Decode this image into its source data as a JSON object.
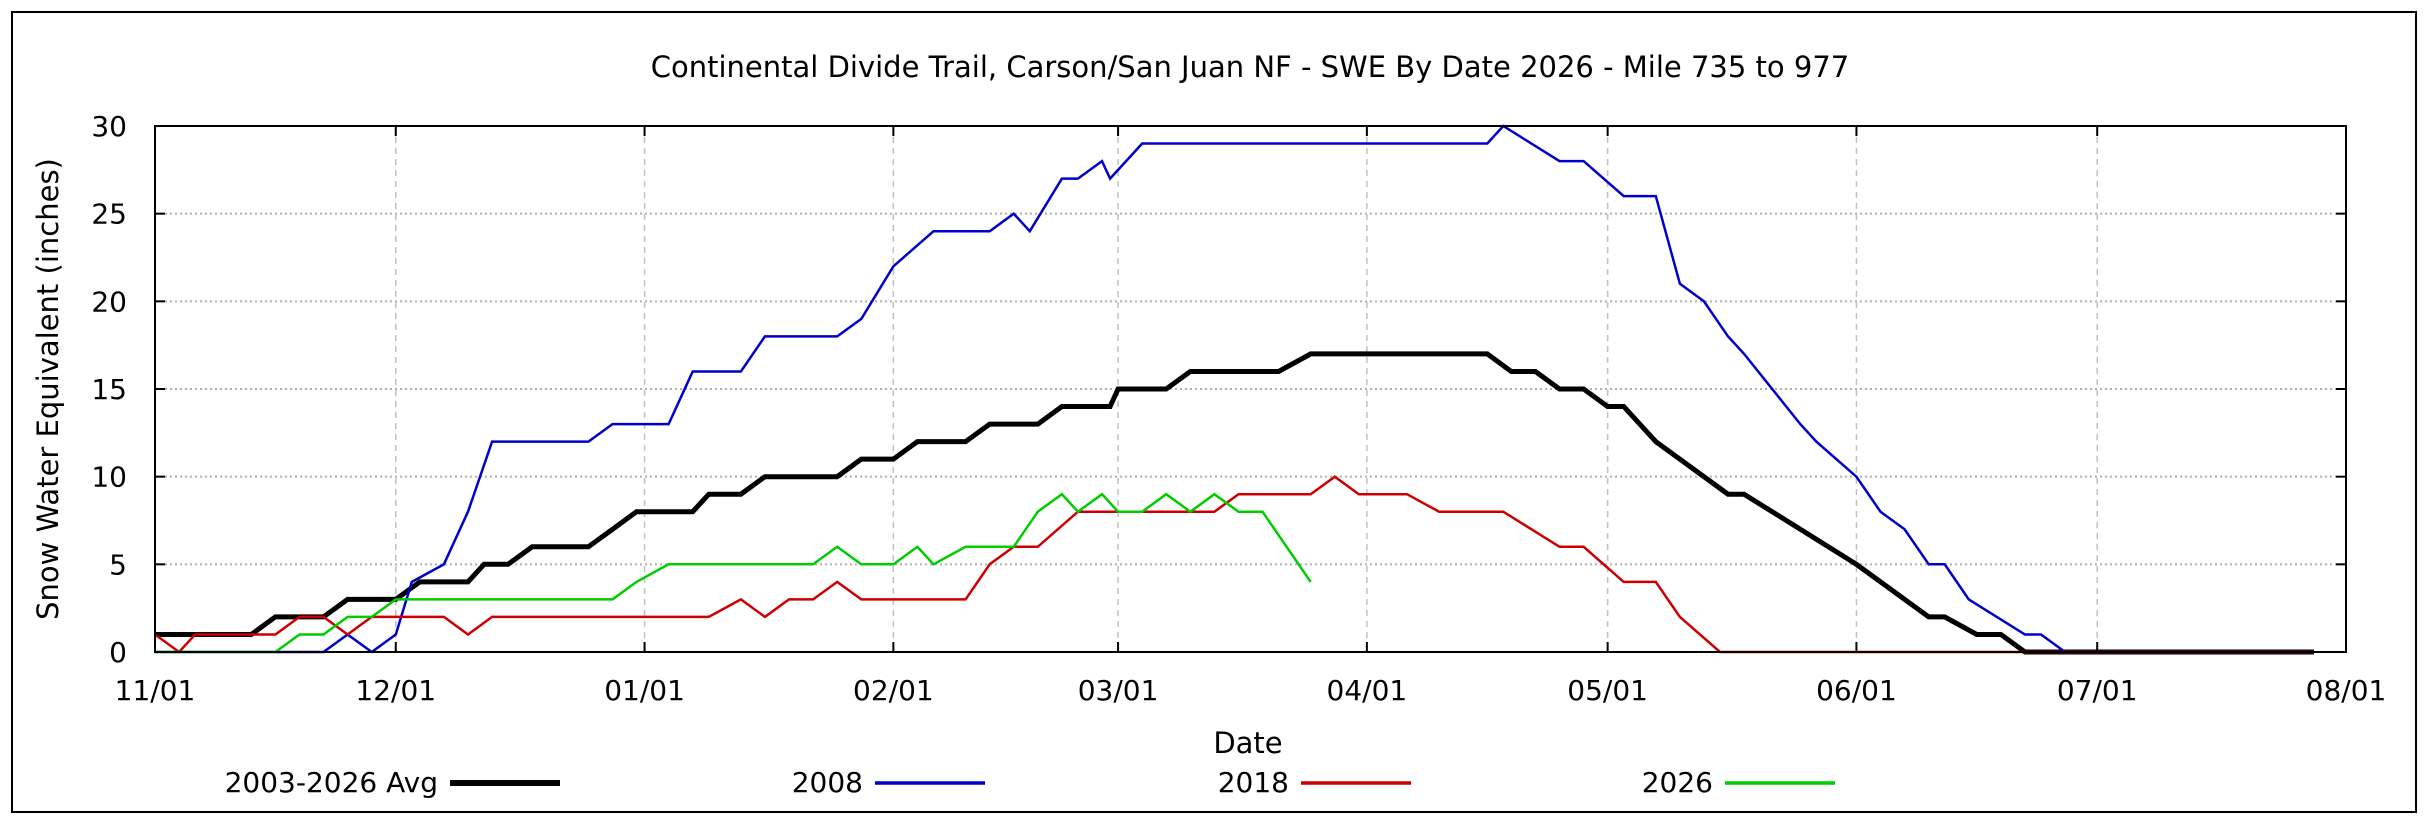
{
  "chart_data": {
    "type": "line",
    "title": "Continental Divide Trail, Carson/San Juan NF - SWE By Date 2026 - Mile 735 to 977",
    "xlabel": "Date",
    "ylabel": "Snow Water Equivalent (inches)",
    "x_unit": "days since 11/01",
    "xlim": [
      0,
      273
    ],
    "ylim": [
      0,
      30
    ],
    "yticks": [
      0,
      5,
      10,
      15,
      20,
      25,
      30
    ],
    "xticks": [
      {
        "label": "11/01",
        "day": 0
      },
      {
        "label": "12/01",
        "day": 30
      },
      {
        "label": "01/01",
        "day": 61
      },
      {
        "label": "02/01",
        "day": 92
      },
      {
        "label": "03/01",
        "day": 120
      },
      {
        "label": "04/01",
        "day": 151
      },
      {
        "label": "05/01",
        "day": 181
      },
      {
        "label": "06/01",
        "day": 212
      },
      {
        "label": "07/01",
        "day": 242
      },
      {
        "label": "08/01",
        "day": 273
      }
    ],
    "grid": true,
    "legend_position": "bottom",
    "series": [
      {
        "name": "2003-2026 Avg",
        "color": "#000000",
        "width": 5,
        "points": [
          [
            0,
            1
          ],
          [
            12,
            1
          ],
          [
            15,
            2
          ],
          [
            21,
            2
          ],
          [
            24,
            3
          ],
          [
            30,
            3
          ],
          [
            33,
            4
          ],
          [
            39,
            4
          ],
          [
            41,
            5
          ],
          [
            44,
            5
          ],
          [
            47,
            6
          ],
          [
            54,
            6
          ],
          [
            57,
            7
          ],
          [
            60,
            8
          ],
          [
            67,
            8
          ],
          [
            69,
            9
          ],
          [
            73,
            9
          ],
          [
            76,
            10
          ],
          [
            85,
            10
          ],
          [
            88,
            11
          ],
          [
            92,
            11
          ],
          [
            95,
            12
          ],
          [
            101,
            12
          ],
          [
            104,
            13
          ],
          [
            110,
            13
          ],
          [
            113,
            14
          ],
          [
            119,
            14
          ],
          [
            120,
            15
          ],
          [
            126,
            15
          ],
          [
            129,
            16
          ],
          [
            140,
            16
          ],
          [
            144,
            17
          ],
          [
            166,
            17
          ],
          [
            169,
            16
          ],
          [
            172,
            16
          ],
          [
            175,
            15
          ],
          [
            178,
            15
          ],
          [
            181,
            14
          ],
          [
            183,
            14
          ],
          [
            187,
            12
          ],
          [
            196,
            9
          ],
          [
            198,
            9
          ],
          [
            212,
            5
          ],
          [
            221,
            2
          ],
          [
            223,
            2
          ],
          [
            227,
            1
          ],
          [
            230,
            1
          ],
          [
            233,
            0
          ],
          [
            269,
            0
          ]
        ]
      },
      {
        "name": "2008",
        "color": "#0000cc",
        "width": 2.5,
        "points": [
          [
            0,
            0
          ],
          [
            21,
            0
          ],
          [
            24,
            1
          ],
          [
            27,
            0
          ],
          [
            30,
            1
          ],
          [
            32,
            4
          ],
          [
            36,
            5
          ],
          [
            39,
            8
          ],
          [
            42,
            12
          ],
          [
            54,
            12
          ],
          [
            57,
            13
          ],
          [
            64,
            13
          ],
          [
            67,
            16
          ],
          [
            73,
            16
          ],
          [
            76,
            18
          ],
          [
            85,
            18
          ],
          [
            88,
            19
          ],
          [
            92,
            22
          ],
          [
            97,
            24
          ],
          [
            104,
            24
          ],
          [
            107,
            25
          ],
          [
            109,
            24
          ],
          [
            113,
            27
          ],
          [
            115,
            27
          ],
          [
            118,
            28
          ],
          [
            119,
            27
          ],
          [
            123,
            29
          ],
          [
            166,
            29
          ],
          [
            168,
            30
          ],
          [
            175,
            28
          ],
          [
            178,
            28
          ],
          [
            183,
            26
          ],
          [
            187,
            26
          ],
          [
            190,
            21
          ],
          [
            193,
            20
          ],
          [
            196,
            18
          ],
          [
            198,
            17
          ],
          [
            205,
            13
          ],
          [
            207,
            12
          ],
          [
            212,
            10
          ],
          [
            215,
            8
          ],
          [
            218,
            7
          ],
          [
            221,
            5
          ],
          [
            223,
            5
          ],
          [
            226,
            3
          ],
          [
            233,
            1
          ],
          [
            235,
            1
          ],
          [
            238,
            0
          ],
          [
            269,
            0
          ]
        ]
      },
      {
        "name": "2018",
        "color": "#cc0000",
        "width": 2.5,
        "points": [
          [
            0,
            1
          ],
          [
            3,
            0
          ],
          [
            5,
            1
          ],
          [
            12,
            1
          ],
          [
            15,
            1
          ],
          [
            18,
            2
          ],
          [
            21,
            2
          ],
          [
            24,
            1
          ],
          [
            27,
            2
          ],
          [
            36,
            2
          ],
          [
            39,
            1
          ],
          [
            42,
            2
          ],
          [
            69,
            2
          ],
          [
            73,
            3
          ],
          [
            76,
            2
          ],
          [
            79,
            3
          ],
          [
            82,
            3
          ],
          [
            85,
            4
          ],
          [
            88,
            3
          ],
          [
            101,
            3
          ],
          [
            104,
            5
          ],
          [
            107,
            6
          ],
          [
            110,
            6
          ],
          [
            115,
            8
          ],
          [
            132,
            8
          ],
          [
            135,
            9
          ],
          [
            144,
            9
          ],
          [
            147,
            10
          ],
          [
            150,
            9
          ],
          [
            156,
            9
          ],
          [
            160,
            8
          ],
          [
            168,
            8
          ],
          [
            175,
            6
          ],
          [
            178,
            6
          ],
          [
            183,
            4
          ],
          [
            187,
            4
          ],
          [
            190,
            2
          ],
          [
            195,
            0
          ],
          [
            269,
            0
          ]
        ]
      },
      {
        "name": "2026",
        "color": "#00cc00",
        "width": 2.5,
        "points": [
          [
            0,
            0
          ],
          [
            15,
            0
          ],
          [
            18,
            1
          ],
          [
            21,
            1
          ],
          [
            24,
            2
          ],
          [
            27,
            2
          ],
          [
            30,
            3
          ],
          [
            57,
            3
          ],
          [
            60,
            4
          ],
          [
            64,
            5
          ],
          [
            82,
            5
          ],
          [
            85,
            6
          ],
          [
            88,
            5
          ],
          [
            92,
            5
          ],
          [
            95,
            6
          ],
          [
            97,
            5
          ],
          [
            101,
            6
          ],
          [
            107,
            6
          ],
          [
            110,
            8
          ],
          [
            113,
            9
          ],
          [
            115,
            8
          ],
          [
            118,
            9
          ],
          [
            120,
            8
          ],
          [
            123,
            8
          ],
          [
            126,
            9
          ],
          [
            129,
            8
          ],
          [
            132,
            9
          ],
          [
            135,
            8
          ],
          [
            138,
            8
          ],
          [
            144,
            4
          ]
        ]
      }
    ]
  }
}
